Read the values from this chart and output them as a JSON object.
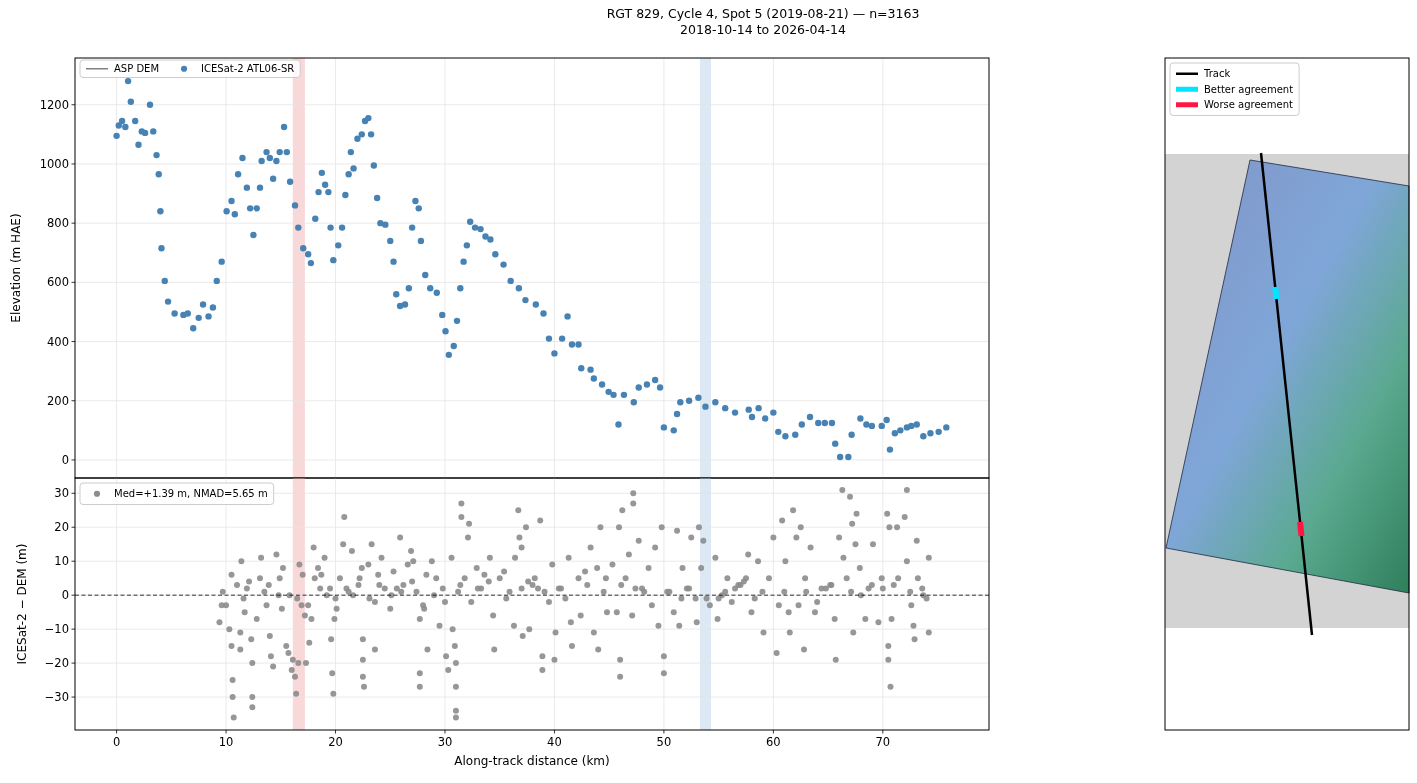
{
  "chart_data": [
    {
      "type": "scatter",
      "title": "RGT 829, Cycle 4, Spot 5 (2019-08-21) — n=3163",
      "subtitle": "2018-10-14 to 2026-04-14",
      "ylabel": "Elevation (m HAE)",
      "x": [
        0,
        0.2,
        0.5,
        0.8,
        1.05,
        1.3,
        1.7,
        2.0,
        2.3,
        2.6,
        3.05,
        3.35,
        3.65,
        3.85,
        4.0,
        4.1,
        4.4,
        4.7,
        5.3,
        6.1,
        6.5,
        7.0,
        7.5,
        7.9,
        8.4,
        8.8,
        9.15,
        9.6,
        10.05,
        10.5,
        10.8,
        11.1,
        11.5,
        11.9,
        12.2,
        12.5,
        12.8,
        13.1,
        13.25,
        13.7,
        14.0,
        14.3,
        14.6,
        14.9,
        15.3,
        15.55,
        15.85,
        16.3,
        16.6,
        17.05,
        17.5,
        17.75,
        18.15,
        18.45,
        18.75,
        19.05,
        19.35,
        19.55,
        19.8,
        20.25,
        20.6,
        20.9,
        21.2,
        21.4,
        21.65,
        22.0,
        22.4,
        22.7,
        23.0,
        23.25,
        23.5,
        23.8,
        24.1,
        24.55,
        25.0,
        25.3,
        25.55,
        25.9,
        26.35,
        26.7,
        27.0,
        27.3,
        27.6,
        27.8,
        28.2,
        28.65,
        29.25,
        29.75,
        30.05,
        30.35,
        30.8,
        31.1,
        31.4,
        31.7,
        32.0,
        32.3,
        32.75,
        33.25,
        33.7,
        34.15,
        34.6,
        35.35,
        36.0,
        36.75,
        37.35,
        38.3,
        39.0,
        39.5,
        40.0,
        40.7,
        41.2,
        41.6,
        42.2,
        42.45,
        43.3,
        43.6,
        44.35,
        44.95,
        45.4,
        45.85,
        46.35,
        47.25,
        47.7,
        48.45,
        49.2,
        49.65,
        50.0,
        50.9,
        51.2,
        51.5,
        52.3,
        53.15,
        53.8,
        54.7,
        55.6,
        56.5,
        57.75,
        58.05,
        58.65,
        59.25,
        60.0,
        60.45,
        61.1,
        62.0,
        62.6,
        63.35,
        64.1,
        64.7,
        65.35,
        65.65,
        66.1,
        66.85,
        67.15,
        67.95,
        68.5,
        69.0,
        69.9,
        70.35,
        70.65,
        71.1,
        71.6,
        72.2,
        72.6,
        73.1,
        73.7,
        74.35,
        75.1,
        75.8
      ],
      "series": [
        {
          "name": "ASP DEM",
          "type": "line",
          "color": "#808080",
          "values": [
            null,
            null,
            null,
            null,
            null,
            null,
            null,
            null,
            null,
            null,
            null,
            null,
            null,
            null,
            null,
            null,
            null,
            null,
            null,
            null,
            null,
            null,
            null,
            null,
            null,
            null,
            null,
            null,
            null,
            null,
            null,
            null,
            null,
            null,
            null,
            null,
            null,
            null,
            null,
            null,
            null,
            null,
            null,
            null,
            null,
            null,
            null,
            null,
            null,
            null,
            null,
            null,
            null,
            null,
            null,
            null,
            null,
            null,
            null,
            null,
            null,
            null,
            null,
            null,
            null,
            null,
            null,
            null,
            null,
            null,
            null,
            null,
            null,
            null,
            null,
            null,
            null,
            null,
            null,
            null,
            null,
            null,
            null,
            null,
            null,
            null,
            null,
            null,
            null,
            null,
            null,
            null,
            null,
            null,
            null,
            null,
            null,
            null,
            null,
            null,
            null,
            null,
            null,
            null,
            null,
            null,
            null,
            null,
            null,
            null,
            null,
            null,
            null,
            null,
            null,
            null,
            null,
            null,
            null,
            null,
            null,
            null,
            null,
            null,
            null,
            null,
            null,
            null,
            null,
            null,
            null,
            null,
            null,
            null,
            null,
            null,
            null,
            null,
            null,
            null,
            null,
            null,
            null,
            null,
            null,
            null,
            null,
            null,
            null,
            null,
            null,
            null,
            null,
            null,
            null,
            null,
            null,
            null,
            null,
            null,
            null,
            null,
            null,
            null,
            null,
            null,
            null,
            null
          ]
        },
        {
          "name": "ICESat-2 ATL06-SR",
          "color": "#4682b4",
          "values": [
            1095,
            1130,
            1145,
            1125,
            1280,
            1210,
            1145,
            1065,
            1110,
            1105,
            1200,
            1110,
            1030,
            965,
            840,
            715,
            605,
            535,
            495,
            490,
            495,
            445,
            480,
            525,
            485,
            515,
            605,
            670,
            840,
            875,
            830,
            965,
            1020,
            920,
            850,
            760,
            850,
            920,
            1010,
            1040,
            1020,
            950,
            1010,
            1040,
            1125,
            1040,
            940,
            860,
            785,
            715,
            695,
            665,
            815,
            905,
            970,
            930,
            905,
            785,
            675,
            725,
            785,
            895,
            965,
            1040,
            985,
            1085,
            1100,
            1145,
            1155,
            1100,
            995,
            885,
            800,
            795,
            740,
            670,
            560,
            520,
            525,
            580,
            785,
            875,
            850,
            740,
            625,
            580,
            565,
            490,
            435,
            355,
            385,
            470,
            580,
            670,
            725,
            805,
            785,
            780,
            755,
            745,
            695,
            660,
            605,
            580,
            540,
            525,
            495,
            410,
            360,
            410,
            485,
            390,
            390,
            310,
            305,
            275,
            255,
            230,
            220,
            120,
            220,
            195,
            245,
            255,
            270,
            245,
            110,
            100,
            155,
            195,
            200,
            210,
            180,
            195,
            175,
            160,
            170,
            145,
            175,
            140,
            160,
            95,
            80,
            85,
            120,
            145,
            125,
            125,
            125,
            55,
            10,
            10,
            85,
            140,
            120,
            115,
            115,
            135,
            35,
            90,
            100,
            110,
            115,
            120,
            80,
            90,
            95,
            110
          ]
        }
      ],
      "xlim": [
        -3.8,
        79.7
      ],
      "ylim": [
        -61,
        1358
      ],
      "xticks": [
        0,
        10,
        20,
        30,
        40,
        50,
        60,
        70
      ],
      "yticks": [
        0,
        200,
        400,
        600,
        800,
        1000,
        1200
      ],
      "tick_labels": "y",
      "grid": true,
      "legend": "top left",
      "marker": "circle",
      "bands": [
        {
          "axis": "x",
          "from": 16.1,
          "to": 17.2,
          "color": "#f8d8d9"
        },
        {
          "axis": "x",
          "from": 53.3,
          "to": 54.3,
          "color": "#dce8f3"
        }
      ]
    },
    {
      "type": "scatter",
      "xlabel": "Along-track distance (km)",
      "ylabel": "ICESat-2 − DEM (m)",
      "series": [
        {
          "name": "Med=+1.39 m, NMAD=5.65 m",
          "color": "#8c8c8c",
          "x": [
            9.4,
            9.6,
            9.7,
            10.3,
            10.5,
            10.6,
            10.6,
            10.7,
            10.5,
            11.0,
            11.4,
            11.3,
            11.3,
            11.7,
            11.9,
            12.3,
            12.4,
            12.4,
            12.4,
            12.8,
            13.1,
            13.2,
            13.5,
            13.7,
            14.0,
            14.1,
            14.3,
            14.6,
            14.8,
            14.9,
            15.1,
            15.2,
            15.5,
            15.7,
            15.8,
            16.0,
            16.1,
            16.3,
            16.4,
            16.6,
            16.7,
            16.9,
            17.0,
            17.2,
            17.3,
            17.5,
            17.6,
            17.8,
            18.0,
            18.1,
            18.4,
            18.7,
            19.0,
            19.2,
            19.5,
            19.6,
            19.7,
            19.8,
            19.9,
            20.1,
            20.4,
            20.7,
            20.8,
            21.0,
            21.5,
            21.6,
            22.1,
            22.4,
            22.5,
            22.5,
            22.5,
            22.6,
            23.0,
            23.3,
            23.6,
            23.6,
            23.9,
            24.2,
            24.5,
            25.0,
            25.3,
            25.6,
            25.9,
            26.2,
            26.6,
            26.9,
            27.1,
            27.4,
            27.7,
            27.7,
            27.7,
            28.0,
            28.3,
            28.4,
            28.8,
            29.2,
            29.5,
            29.8,
            30.1,
            30.3,
            30.6,
            30.7,
            30.9,
            31.0,
            31.0,
            31.0,
            31.0,
            31.2,
            31.5,
            31.5,
            31.8,
            32.1,
            32.2,
            32.4,
            32.9,
            33.3,
            33.6,
            34.1,
            34.4,
            34.5,
            35.0,
            35.4,
            35.9,
            36.3,
            36.4,
            36.7,
            36.8,
            37.0,
            37.1,
            37.4,
            37.6,
            37.7,
            38.2,
            38.5,
            38.7,
            38.9,
            38.9,
            39.5,
            39.8,
            40.0,
            40.1,
            40.6,
            41.3,
            41.5,
            41.6,
            42.2,
            42.4,
            42.8,
            43.3,
            43.6,
            43.9,
            44.0,
            44.2,
            44.7,
            44.8,
            45.3,
            45.7,
            45.9,
            46.0,
            46.0,
            46.2,
            46.5,
            46.8,
            47.1,
            47.2,
            47.2,
            47.4,
            47.7,
            48.2,
            48.6,
            48.9,
            49.2,
            49.5,
            49.8,
            50.0,
            50.0,
            50.3,
            50.9,
            51.2,
            51.4,
            51.7,
            52.1,
            52.5,
            52.9,
            53.0,
            53.2,
            53.4,
            53.6,
            53.9,
            54.2,
            54.7,
            54.9,
            55.3,
            55.8,
            56.2,
            56.8,
            57.3,
            57.7,
            58.0,
            58.6,
            59.1,
            59.6,
            60.0,
            60.3,
            60.5,
            60.8,
            61.1,
            61.4,
            61.5,
            61.8,
            62.1,
            62.3,
            62.5,
            62.8,
            62.9,
            63.4,
            63.8,
            64.4,
            65.2,
            65.6,
            65.7,
            66.0,
            66.3,
            66.4,
            66.7,
            67.0,
            67.2,
            67.3,
            67.5,
            67.6,
            67.9,
            68.4,
            68.7,
            69.1,
            69.6,
            69.9,
            70.4,
            70.5,
            70.5,
            70.6,
            70.7,
            70.8,
            71.3,
            71.4,
            72.0,
            72.2,
            72.2,
            72.6,
            72.8,
            72.9,
            73.1,
            73.2,
            73.6,
            74.0,
            74.2,
            74.2,
            10.0,
            11.6,
            12.1,
            13.9,
            16.5,
            18.6,
            20.0,
            21.2,
            22.2,
            23.1,
            24.0,
            25.1,
            26.0,
            27.0,
            28.1,
            29.0,
            30.0,
            31.4,
            33.0,
            34.0,
            35.6,
            37.0,
            38.0,
            39.1,
            40.4,
            41.0,
            43.0,
            44.5,
            46.1,
            48.0,
            50.5,
            51.6,
            52.3,
            55.0,
            55.6,
            56.5,
            57.0,
            57.5,
            58.3,
            59.0,
            61.0,
            63.0,
            64.0,
            64.8,
            65.3,
            67.1,
            68.0,
            69.0,
            70.0,
            71.0,
            72.5,
            73.7
          ],
          "values": [
            -8,
            -3,
            1,
            -10,
            -15,
            -25,
            -30,
            -36,
            6,
            3,
            10,
            -11,
            -16,
            -5,
            2,
            -13,
            -20,
            -30,
            -33,
            -7,
            5,
            11,
            1,
            -3,
            -12,
            -18,
            -21,
            12,
            0,
            5,
            -4,
            8,
            -15,
            -17,
            0,
            -22,
            -19,
            -24,
            -29,
            -20,
            9,
            -3,
            6,
            -6,
            -20,
            -3,
            -14,
            -7,
            14,
            5,
            8,
            6,
            11,
            0,
            2,
            -13,
            -23,
            -29,
            -7,
            -4,
            5,
            15,
            23,
            2,
            13,
            0,
            3,
            8,
            -13,
            -19,
            -24,
            -27,
            9,
            15,
            -2,
            -16,
            6,
            11,
            2,
            -4,
            7,
            2,
            17,
            3,
            9,
            13,
            10,
            1,
            -7,
            -23,
            -27,
            -3,
            6,
            -16,
            10,
            5,
            -9,
            2,
            -18,
            -22,
            11,
            -10,
            -15,
            -20,
            -27,
            -34,
            -36,
            1,
            23,
            27,
            5,
            17,
            21,
            -2,
            8,
            2,
            6,
            11,
            -6,
            -16,
            5,
            7,
            1,
            -9,
            11,
            25,
            17,
            14,
            -12,
            20,
            4,
            -10,
            5,
            2,
            22,
            -18,
            -22,
            -2,
            9,
            -19,
            -11,
            2,
            11,
            -8,
            -15,
            5,
            -6,
            7,
            14,
            -11,
            8,
            -16,
            20,
            5,
            -5,
            9,
            -5,
            20,
            -19,
            -24,
            25,
            5,
            12,
            -6,
            30,
            27,
            2,
            16,
            1,
            8,
            -3,
            14,
            -9,
            20,
            -18,
            -23,
            1,
            -5,
            19,
            -9,
            8,
            2,
            17,
            -1,
            -8,
            20,
            8,
            16,
            -1,
            -3,
            11,
            -7,
            0,
            5,
            -2,
            3,
            4,
            12,
            -5,
            10,
            -11,
            5,
            17,
            -17,
            -3,
            22,
            10,
            -5,
            -11,
            25,
            17,
            -3,
            20,
            -16,
            5,
            14,
            -5,
            2,
            3,
            -7,
            -19,
            17,
            31,
            11,
            5,
            29,
            21,
            -11,
            15,
            24,
            8,
            -7,
            2,
            15,
            -8,
            5,
            24,
            -15,
            -19,
            20,
            -27,
            -7,
            20,
            5,
            23,
            31,
            10,
            -3,
            -9,
            -13,
            16,
            5,
            2,
            -1,
            11,
            -11,
            -3,
            -1,
            4,
            3,
            -1,
            2,
            -1,
            1,
            5,
            -1,
            3,
            0,
            1,
            4,
            -4,
            0,
            -2,
            3,
            2,
            4,
            -1,
            2,
            3,
            1,
            2,
            -1,
            3,
            1,
            3,
            2,
            1,
            -1,
            2,
            -1,
            1,
            2,
            3,
            5,
            -1,
            1,
            1,
            1,
            -2,
            2,
            3,
            1,
            0,
            3,
            2,
            3,
            1,
            0
          ]
        }
      ],
      "xlim": [
        -3.8,
        79.7
      ],
      "ylim": [
        -39.7,
        34.5
      ],
      "xticks": [
        0,
        10,
        20,
        30,
        40,
        50,
        60,
        70
      ],
      "yticks": [
        {
          "value": -30,
          "label": "−30"
        },
        {
          "value": -20,
          "label": "−20"
        },
        {
          "value": -10,
          "label": "−10"
        },
        0,
        10,
        20,
        30
      ],
      "grid": true,
      "legend": "top left",
      "marker": "circle",
      "ref_lines": [
        {
          "axis": "y",
          "value": 0,
          "color": "#000000",
          "line_style": "dashed"
        }
      ],
      "bands": [
        {
          "axis": "x",
          "from": 16.1,
          "to": 17.2,
          "color": "#f8d8d9"
        },
        {
          "axis": "x",
          "from": 53.3,
          "to": 54.3,
          "color": "#dce8f3"
        }
      ]
    },
    {
      "type": "other",
      "legend": "top left",
      "series": [
        {
          "name": "Track",
          "color": "#000000"
        },
        {
          "name": "Better agreement",
          "color": "#00e5ff"
        },
        {
          "name": "Worse agreement",
          "color": "#ff1744"
        }
      ]
    }
  ]
}
